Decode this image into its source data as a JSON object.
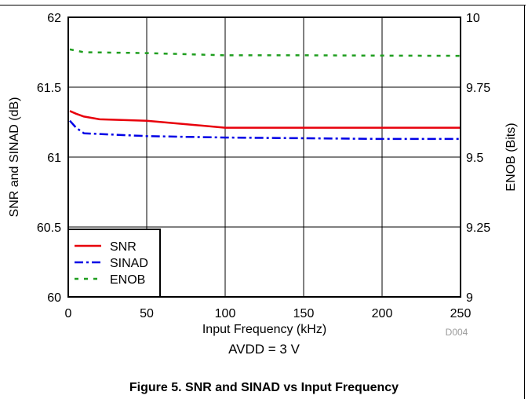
{
  "chart_data": {
    "type": "line",
    "xlabel": "Input Frequency (kHz)",
    "ylabel": "SNR and SINAD (dB)",
    "y2label": "ENOB (Bits)",
    "xlim": [
      0,
      250
    ],
    "ylim": [
      60,
      62
    ],
    "y2lim": [
      9,
      10
    ],
    "xticks": [
      "0",
      "50",
      "100",
      "150",
      "200",
      "250"
    ],
    "yticks": [
      "60",
      "60.5",
      "61",
      "61.5",
      "62"
    ],
    "y2ticks": [
      "9",
      "9.25",
      "9.5",
      "9.75",
      "10"
    ],
    "grid": true,
    "legend_position": "bottom-left",
    "code_label": "D004",
    "series": [
      {
        "name": "SNR",
        "axis": "left",
        "color": "#e8000b",
        "dash": "solid",
        "x": [
          1,
          5,
          10,
          20,
          50,
          100,
          150,
          200,
          250
        ],
        "y": [
          61.33,
          61.31,
          61.29,
          61.27,
          61.26,
          61.21,
          61.21,
          61.21,
          61.21
        ]
      },
      {
        "name": "SINAD",
        "axis": "left",
        "color": "#0000e6",
        "dash": "dashdot",
        "x": [
          1,
          5,
          10,
          20,
          50,
          100,
          150,
          200,
          250
        ],
        "y": [
          61.26,
          61.21,
          61.17,
          61.165,
          61.15,
          61.14,
          61.135,
          61.13,
          61.13
        ]
      },
      {
        "name": "ENOB",
        "axis": "right",
        "color": "#1f9e1f",
        "dash": "dotted",
        "x": [
          1,
          10,
          50,
          100,
          150,
          200,
          250
        ],
        "y": [
          9.885,
          9.875,
          9.872,
          9.864,
          9.864,
          9.863,
          9.862
        ]
      }
    ]
  },
  "captions": {
    "condition": "AVDD = 3 V",
    "figure": "Figure 5. SNR and SINAD vs Input Frequency"
  }
}
